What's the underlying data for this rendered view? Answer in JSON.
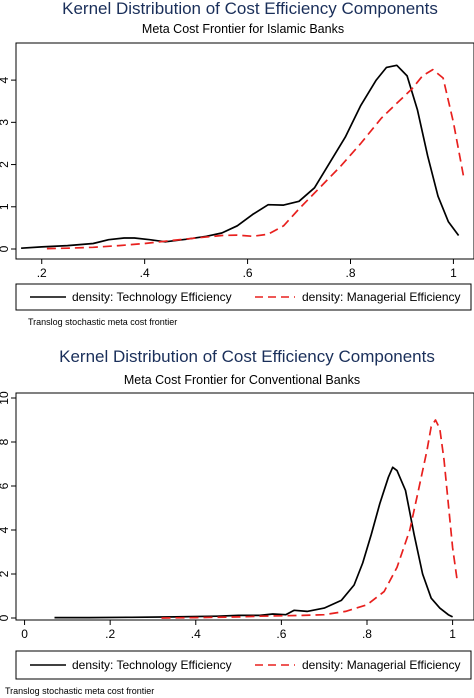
{
  "chart_data": [
    {
      "type": "line",
      "title": "Kernel Distribution of Cost Efficiency Components",
      "subtitle": "Meta Cost Frontier for Islamic Banks",
      "note": "Translog stochastic meta cost frontier",
      "xlim": [
        0.15,
        1.04
      ],
      "ylim": [
        0,
        4.5
      ],
      "xticks": [
        ".2",
        ".4",
        ".6",
        ".8",
        "1"
      ],
      "xtick_values": [
        0.2,
        0.4,
        0.6,
        0.8,
        1.0
      ],
      "yticks": [
        "0",
        "1",
        "2",
        "3",
        "4"
      ],
      "ytick_values": [
        0,
        1,
        2,
        3,
        4
      ],
      "legend": "bottom",
      "colors": {
        "title": "#1a2f5a",
        "technology": "#000000",
        "managerial": "#e8201e"
      },
      "series": [
        {
          "name": "density: Technology Efficiency",
          "style": "solid",
          "x": [
            0.16,
            0.2,
            0.25,
            0.3,
            0.33,
            0.36,
            0.38,
            0.41,
            0.44,
            0.48,
            0.52,
            0.55,
            0.58,
            0.61,
            0.64,
            0.67,
            0.7,
            0.73,
            0.76,
            0.79,
            0.82,
            0.85,
            0.87,
            0.89,
            0.91,
            0.93,
            0.95,
            0.97,
            0.99,
            1.01
          ],
          "y": [
            0.02,
            0.05,
            0.08,
            0.13,
            0.22,
            0.26,
            0.26,
            0.22,
            0.17,
            0.23,
            0.3,
            0.38,
            0.55,
            0.82,
            1.05,
            1.04,
            1.13,
            1.45,
            2.05,
            2.65,
            3.4,
            4.0,
            4.3,
            4.35,
            4.1,
            3.3,
            2.2,
            1.25,
            0.65,
            0.32
          ]
        },
        {
          "name": "density: Managerial Efficiency",
          "style": "dashed",
          "x": [
            0.21,
            0.25,
            0.3,
            0.35,
            0.4,
            0.45,
            0.5,
            0.55,
            0.58,
            0.61,
            0.64,
            0.67,
            0.7,
            0.74,
            0.78,
            0.82,
            0.86,
            0.89,
            0.92,
            0.94,
            0.96,
            0.98,
            1.0,
            1.02
          ],
          "y": [
            0.01,
            0.02,
            0.04,
            0.08,
            0.13,
            0.2,
            0.26,
            0.32,
            0.33,
            0.3,
            0.35,
            0.55,
            0.95,
            1.45,
            1.95,
            2.5,
            3.1,
            3.45,
            3.8,
            4.1,
            4.25,
            4.05,
            3.0,
            1.7
          ]
        }
      ]
    },
    {
      "type": "line",
      "title": "Kernel Distribution of Cost Efficiency Components",
      "subtitle": "Meta Cost Frontier for Conventional Banks",
      "note": "Translog stochastic meta cost frontier",
      "xlim": [
        -0.02,
        1.05
      ],
      "ylim": [
        0,
        10
      ],
      "xticks": [
        "0",
        ".2",
        ".4",
        ".6",
        ".8",
        "1"
      ],
      "xtick_values": [
        0,
        0.2,
        0.4,
        0.6,
        0.8,
        1.0
      ],
      "yticks": [
        "0",
        "2",
        "4",
        "6",
        "8",
        "10"
      ],
      "ytick_values": [
        0,
        2,
        4,
        6,
        8,
        10
      ],
      "legend": "bottom",
      "colors": {
        "title": "#1a2f5a",
        "technology": "#000000",
        "managerial": "#e8201e"
      },
      "series": [
        {
          "name": "density: Technology Efficiency",
          "style": "solid",
          "x": [
            0.07,
            0.15,
            0.25,
            0.35,
            0.45,
            0.5,
            0.55,
            0.58,
            0.61,
            0.63,
            0.66,
            0.7,
            0.74,
            0.77,
            0.79,
            0.81,
            0.83,
            0.85,
            0.86,
            0.87,
            0.89,
            0.91,
            0.93,
            0.95,
            0.97,
            0.99,
            1.0
          ],
          "y": [
            0.02,
            0.02,
            0.03,
            0.05,
            0.08,
            0.12,
            0.12,
            0.18,
            0.15,
            0.35,
            0.3,
            0.45,
            0.8,
            1.5,
            2.5,
            3.8,
            5.2,
            6.4,
            6.85,
            6.7,
            5.8,
            3.8,
            2.0,
            0.9,
            0.45,
            0.15,
            0.05
          ]
        },
        {
          "name": "density: Managerial Efficiency",
          "style": "dashed",
          "x": [
            0.32,
            0.4,
            0.5,
            0.55,
            0.6,
            0.65,
            0.7,
            0.75,
            0.8,
            0.84,
            0.87,
            0.9,
            0.92,
            0.94,
            0.95,
            0.96,
            0.97,
            0.98,
            0.99,
            1.0,
            1.01
          ],
          "y": [
            0.0,
            0.02,
            0.05,
            0.08,
            0.1,
            0.12,
            0.15,
            0.3,
            0.6,
            1.2,
            2.3,
            4.0,
            5.8,
            7.6,
            8.7,
            9.0,
            8.6,
            7.2,
            5.2,
            3.2,
            1.8
          ]
        }
      ]
    }
  ]
}
